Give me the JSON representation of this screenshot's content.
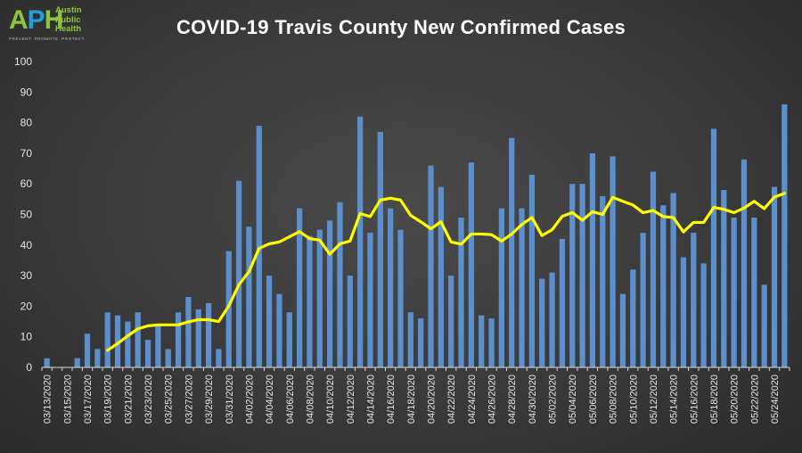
{
  "logo": {
    "mark_a": "A",
    "mark_p": "P",
    "mark_h": "H",
    "line1": "Austin",
    "line2": "Public",
    "line3": "Health",
    "tagline": "PREVENT. PROMOTE. PROTECT."
  },
  "colors": {
    "bar": "#5b8fce",
    "line": "#ffff00",
    "axis": "#d9d9d9",
    "text": "#ffffff"
  },
  "chart_data": {
    "type": "bar",
    "title": "COVID-19 Travis County New Confirmed Cases",
    "ylim": [
      0,
      100
    ],
    "yticks": [
      0,
      10,
      20,
      30,
      40,
      50,
      60,
      70,
      80,
      90,
      100
    ],
    "grid": false,
    "legend": "none",
    "xtick_labels": [
      "03/13/2020",
      "03/15/2020",
      "03/17/2020",
      "03/19/2020",
      "03/21/2020",
      "03/23/2020",
      "03/25/2020",
      "03/27/2020",
      "03/29/2020",
      "03/31/2020",
      "04/02/2020",
      "04/04/2020",
      "04/06/2020",
      "04/08/2020",
      "04/10/2020",
      "04/12/2020",
      "04/14/2020",
      "04/16/2020",
      "04/18/2020",
      "04/20/2020",
      "04/22/2020",
      "04/24/2020",
      "04/26/2020",
      "04/28/2020",
      "04/30/2020",
      "05/02/2020",
      "05/04/2020",
      "05/06/2020",
      "05/08/2020",
      "05/10/2020",
      "05/12/2020",
      "05/14/2020",
      "05/16/2020",
      "05/18/2020",
      "05/20/2020",
      "05/22/2020",
      "05/24/2020"
    ],
    "categories": [
      "03/13/2020",
      "03/14/2020",
      "03/15/2020",
      "03/16/2020",
      "03/17/2020",
      "03/18/2020",
      "03/19/2020",
      "03/20/2020",
      "03/21/2020",
      "03/22/2020",
      "03/23/2020",
      "03/24/2020",
      "03/25/2020",
      "03/26/2020",
      "03/27/2020",
      "03/28/2020",
      "03/29/2020",
      "03/30/2020",
      "03/31/2020",
      "04/01/2020",
      "04/02/2020",
      "04/03/2020",
      "04/04/2020",
      "04/05/2020",
      "04/06/2020",
      "04/07/2020",
      "04/08/2020",
      "04/09/2020",
      "04/10/2020",
      "04/11/2020",
      "04/12/2020",
      "04/13/2020",
      "04/14/2020",
      "04/15/2020",
      "04/16/2020",
      "04/17/2020",
      "04/18/2020",
      "04/19/2020",
      "04/20/2020",
      "04/21/2020",
      "04/22/2020",
      "04/23/2020",
      "04/24/2020",
      "04/25/2020",
      "04/26/2020",
      "04/27/2020",
      "04/28/2020",
      "04/29/2020",
      "04/30/2020",
      "05/01/2020",
      "05/02/2020",
      "05/03/2020",
      "05/04/2020",
      "05/05/2020",
      "05/06/2020",
      "05/07/2020",
      "05/08/2020",
      "05/09/2020",
      "05/10/2020",
      "05/11/2020",
      "05/12/2020",
      "05/13/2020",
      "05/14/2020",
      "05/15/2020",
      "05/16/2020",
      "05/17/2020",
      "05/18/2020",
      "05/19/2020",
      "05/20/2020",
      "05/21/2020",
      "05/22/2020",
      "05/23/2020",
      "05/24/2020",
      "05/25/2020"
    ],
    "series": [
      {
        "type": "bar",
        "values": [
          3,
          0,
          0,
          3,
          11,
          6,
          18,
          17,
          15,
          18,
          9,
          14,
          6,
          18,
          23,
          19,
          21,
          6,
          38,
          61,
          46,
          79,
          30,
          24,
          18,
          52,
          43,
          45,
          48,
          54,
          30,
          82,
          44,
          77,
          52,
          45,
          18,
          16,
          66,
          59,
          30,
          49,
          67,
          17,
          16,
          52,
          75,
          52,
          63,
          29,
          31,
          42,
          60,
          60,
          70,
          56,
          69,
          24,
          32,
          44,
          64,
          53,
          57,
          36,
          44,
          34,
          78,
          58,
          49,
          68,
          49,
          27,
          59,
          86
        ]
      },
      {
        "type": "line",
        "values": [
          null,
          null,
          null,
          null,
          null,
          null,
          5.6,
          7.8,
          10.3,
          12.6,
          13.6,
          13.9,
          13.9,
          13.9,
          14.9,
          15.6,
          15.6,
          15.0,
          20.1,
          27.0,
          31.3,
          38.9,
          40.4,
          41.0,
          42.7,
          44.4,
          42.1,
          41.6,
          37.0,
          40.4,
          41.3,
          50.3,
          49.3,
          54.7,
          55.3,
          54.7,
          49.7,
          47.6,
          45.3,
          47.6,
          41.0,
          40.3,
          43.6,
          43.6,
          43.4,
          41.3,
          43.6,
          46.7,
          49.0,
          43.1,
          45.0,
          49.4,
          50.6,
          48.1,
          50.9,
          50.0,
          55.6,
          54.3,
          53.1,
          50.6,
          51.3,
          49.3,
          49.0,
          44.3,
          47.4,
          47.4,
          52.3,
          51.7,
          50.6,
          52.1,
          54.3,
          51.9,
          55.7,
          56.9
        ]
      }
    ]
  }
}
